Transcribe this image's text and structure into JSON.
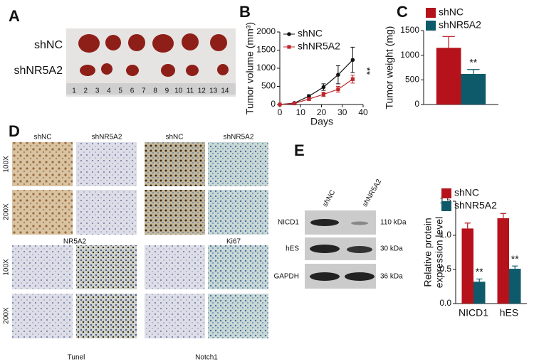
{
  "panel_a": {
    "letter": "A",
    "groups": [
      "shNC",
      "shNR5A2"
    ],
    "ruler": [
      "1",
      "2",
      "3",
      "4",
      "5",
      "6",
      "7",
      "8",
      "9",
      "10",
      "11",
      "12",
      "13",
      "14"
    ]
  },
  "panel_d": {
    "letter": "D",
    "columns": [
      "shNC",
      "shNR5A2",
      "shNC",
      "shNR5A2"
    ],
    "magnifications": [
      "100X",
      "200X",
      "100X",
      "200X"
    ],
    "stains": [
      "NR5A2",
      "Ki67",
      "Tunel",
      "Notch1"
    ]
  },
  "panel_e": {
    "letter": "E",
    "lanes": [
      "shNC",
      "shNR5A2"
    ],
    "proteins": [
      "NICD1",
      "hES",
      "GAPDH"
    ],
    "sizes": [
      "110 kDa",
      "30 kDa",
      "36 kDa"
    ]
  },
  "chart_data": [
    {
      "type": "line",
      "label": "B",
      "x_label": "Days",
      "y_label": "Tumor volume (mm³)",
      "x": [
        0,
        7,
        14,
        21,
        28,
        35
      ],
      "series": [
        {
          "name": "shNC",
          "color": "#111111",
          "marker": "circle",
          "values": [
            0,
            40,
            230,
            480,
            820,
            1230
          ],
          "errors": [
            0,
            20,
            40,
            90,
            250,
            350
          ]
        },
        {
          "name": "shNR5A2",
          "color": "#c0272d",
          "marker": "square",
          "values": [
            0,
            30,
            150,
            280,
            420,
            700
          ],
          "errors": [
            0,
            15,
            30,
            60,
            80,
            110
          ]
        }
      ],
      "xlim": [
        0,
        40
      ],
      "xticks": [
        0,
        10,
        20,
        30,
        40
      ],
      "ylim": [
        0,
        2000
      ],
      "yticks": [
        0,
        500,
        1000,
        1500,
        2000
      ],
      "annotations": [
        "**"
      ]
    },
    {
      "type": "bar",
      "label": "C",
      "y_label": "Tumor weight (mg)",
      "categories": [
        null
      ],
      "series": [
        {
          "name": "shNC",
          "color": "#b5121b",
          "values": [
            1150
          ],
          "errors": [
            230
          ]
        },
        {
          "name": "shNR5A2",
          "color": "#0e5a6a",
          "values": [
            620
          ],
          "errors": [
            90
          ]
        }
      ],
      "ylim": [
        0,
        1500
      ],
      "yticks": [
        0,
        500,
        1000,
        1500
      ],
      "annotations": [
        "**"
      ]
    },
    {
      "type": "bar",
      "y_label": [
        "Relative protein",
        "expression level"
      ],
      "categories": [
        "NICD1",
        "hES"
      ],
      "series": [
        {
          "name": "shNC",
          "color": "#b5121b",
          "values": [
            1.1,
            1.25
          ],
          "errors": [
            0.08,
            0.07
          ]
        },
        {
          "name": "shNR5A2",
          "color": "#0e5a6a",
          "values": [
            0.32,
            0.51
          ],
          "errors": [
            0.04,
            0.04
          ]
        }
      ],
      "ylim": [
        0,
        1.5
      ],
      "yticks": [
        {
          "value": 0,
          "label": "0.0"
        },
        0.5,
        {
          "value": 1,
          "label": "1.0"
        },
        1.5
      ],
      "annotations": [
        "**",
        "**"
      ]
    }
  ]
}
